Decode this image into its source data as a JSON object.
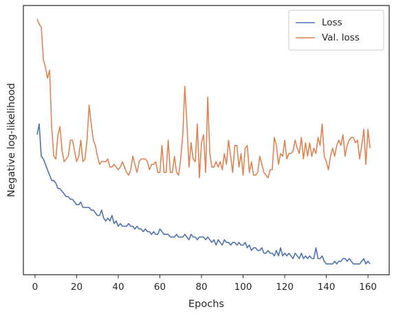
{
  "chart_data": {
    "type": "line",
    "xlabel": "Epochs",
    "ylabel": "Negative log-likelihood",
    "x": [
      1,
      2,
      3,
      4,
      5,
      6,
      7,
      8,
      9,
      10,
      11,
      12,
      13,
      14,
      15,
      16,
      17,
      18,
      19,
      20,
      21,
      22,
      23,
      24,
      25,
      26,
      27,
      28,
      29,
      30,
      31,
      32,
      33,
      34,
      35,
      36,
      37,
      38,
      39,
      40,
      41,
      42,
      43,
      44,
      45,
      46,
      47,
      48,
      49,
      50,
      51,
      52,
      53,
      54,
      55,
      56,
      57,
      58,
      59,
      60,
      61,
      62,
      63,
      64,
      65,
      66,
      67,
      68,
      69,
      70,
      71,
      72,
      73,
      74,
      75,
      76,
      77,
      78,
      79,
      80,
      81,
      82,
      83,
      84,
      85,
      86,
      87,
      88,
      89,
      90,
      91,
      92,
      93,
      94,
      95,
      96,
      97,
      98,
      99,
      100,
      101,
      102,
      103,
      104,
      105,
      106,
      107,
      108,
      109,
      110,
      111,
      112,
      113,
      114,
      115,
      116,
      117,
      118,
      119,
      120,
      121,
      122,
      123,
      124,
      125,
      126,
      127,
      128,
      129,
      130,
      131,
      132,
      133,
      134,
      135,
      136,
      137,
      138,
      139,
      140,
      141,
      142,
      143,
      144,
      145,
      146,
      147,
      148,
      149,
      150,
      151,
      152,
      153,
      154,
      155,
      156,
      157,
      158,
      159,
      160,
      161
    ],
    "series": [
      {
        "name": "Loss",
        "color": "#4c72b0",
        "values": [
          0.52,
          0.56,
          0.44,
          0.43,
          0.41,
          0.39,
          0.37,
          0.35,
          0.35,
          0.34,
          0.32,
          0.32,
          0.31,
          0.3,
          0.29,
          0.29,
          0.28,
          0.28,
          0.27,
          0.26,
          0.26,
          0.27,
          0.25,
          0.25,
          0.25,
          0.25,
          0.24,
          0.24,
          0.23,
          0.22,
          0.22,
          0.24,
          0.21,
          0.2,
          0.21,
          0.2,
          0.22,
          0.19,
          0.2,
          0.18,
          0.19,
          0.18,
          0.18,
          0.18,
          0.19,
          0.18,
          0.18,
          0.17,
          0.18,
          0.17,
          0.17,
          0.16,
          0.17,
          0.16,
          0.16,
          0.15,
          0.16,
          0.15,
          0.15,
          0.17,
          0.16,
          0.15,
          0.15,
          0.15,
          0.14,
          0.14,
          0.14,
          0.15,
          0.14,
          0.14,
          0.14,
          0.15,
          0.14,
          0.13,
          0.15,
          0.14,
          0.14,
          0.13,
          0.14,
          0.14,
          0.14,
          0.13,
          0.14,
          0.13,
          0.12,
          0.13,
          0.11,
          0.13,
          0.12,
          0.11,
          0.13,
          0.12,
          0.12,
          0.11,
          0.12,
          0.12,
          0.11,
          0.12,
          0.11,
          0.11,
          0.12,
          0.1,
          0.11,
          0.09,
          0.1,
          0.1,
          0.09,
          0.09,
          0.1,
          0.08,
          0.08,
          0.09,
          0.08,
          0.08,
          0.07,
          0.09,
          0.07,
          0.1,
          0.07,
          0.08,
          0.07,
          0.08,
          0.07,
          0.06,
          0.08,
          0.07,
          0.06,
          0.08,
          0.06,
          0.07,
          0.06,
          0.07,
          0.06,
          0.06,
          0.1,
          0.06,
          0.06,
          0.07,
          0.05,
          0.04,
          0.04,
          0.04,
          0.04,
          0.05,
          0.04,
          0.05,
          0.05,
          0.06,
          0.06,
          0.05,
          0.06,
          0.05,
          0.04,
          0.04,
          0.04,
          0.04,
          0.05,
          0.06,
          0.04,
          0.05,
          0.04
        ]
      },
      {
        "name": "Val. loss",
        "color": "#dd8452",
        "values": [
          0.95,
          0.93,
          0.92,
          0.8,
          0.77,
          0.73,
          0.76,
          0.55,
          0.44,
          0.43,
          0.52,
          0.55,
          0.46,
          0.42,
          0.43,
          0.44,
          0.5,
          0.5,
          0.46,
          0.42,
          0.44,
          0.5,
          0.42,
          0.43,
          0.5,
          0.63,
          0.56,
          0.5,
          0.48,
          0.44,
          0.41,
          0.42,
          0.42,
          0.42,
          0.43,
          0.4,
          0.4,
          0.41,
          0.4,
          0.39,
          0.4,
          0.42,
          0.4,
          0.38,
          0.37,
          0.39,
          0.44,
          0.41,
          0.38,
          0.42,
          0.43,
          0.43,
          0.43,
          0.42,
          0.39,
          0.41,
          0.41,
          0.42,
          0.38,
          0.38,
          0.48,
          0.38,
          0.38,
          0.5,
          0.38,
          0.38,
          0.44,
          0.38,
          0.37,
          0.43,
          0.52,
          0.7,
          0.56,
          0.4,
          0.49,
          0.43,
          0.42,
          0.56,
          0.36,
          0.49,
          0.52,
          0.38,
          0.66,
          0.45,
          0.4,
          0.4,
          0.42,
          0.4,
          0.42,
          0.39,
          0.45,
          0.41,
          0.5,
          0.44,
          0.38,
          0.48,
          0.48,
          0.4,
          0.45,
          0.37,
          0.47,
          0.48,
          0.38,
          0.42,
          0.37,
          0.37,
          0.38,
          0.44,
          0.41,
          0.38,
          0.37,
          0.36,
          0.39,
          0.39,
          0.51,
          0.48,
          0.41,
          0.45,
          0.44,
          0.5,
          0.43,
          0.45,
          0.45,
          0.46,
          0.5,
          0.47,
          0.45,
          0.51,
          0.43,
          0.49,
          0.44,
          0.49,
          0.44,
          0.47,
          0.45,
          0.51,
          0.48,
          0.56,
          0.44,
          0.42,
          0.39,
          0.44,
          0.47,
          0.44,
          0.48,
          0.5,
          0.48,
          0.52,
          0.44,
          0.48,
          0.5,
          0.51,
          0.51,
          0.49,
          0.5,
          0.43,
          0.48,
          0.54,
          0.41,
          0.54,
          0.47
        ]
      }
    ],
    "xlim": [
      -5.6,
      170.2
    ],
    "xticks": [
      0,
      20,
      40,
      60,
      80,
      100,
      120,
      140,
      160
    ],
    "ylim": [
      0,
      1
    ],
    "legend": "upper right"
  }
}
